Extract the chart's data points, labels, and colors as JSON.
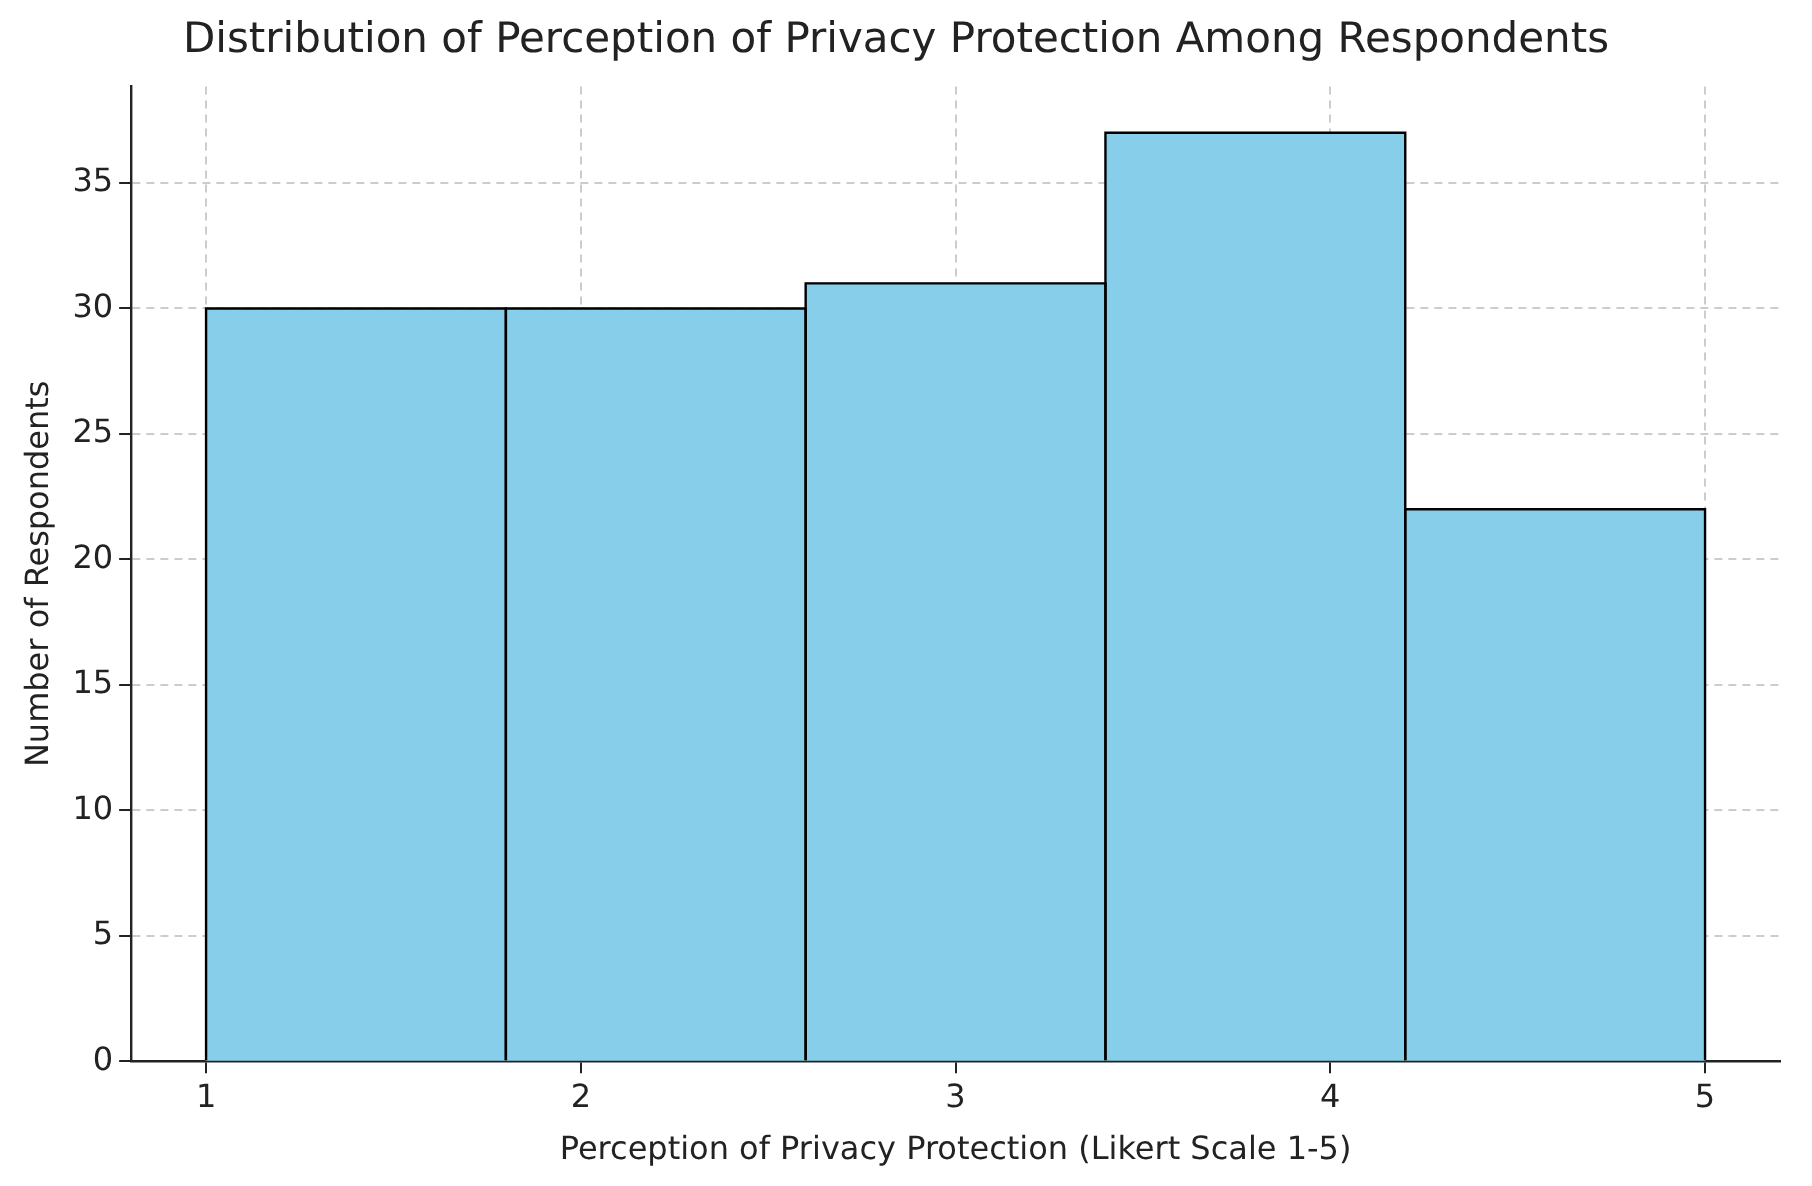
{
  "chart_data": {
    "type": "histogram",
    "title": "Distribution of Perception of Privacy Protection Among Respondents",
    "xlabel": "Perception of Privacy Protection (Likert Scale 1-5)",
    "ylabel": "Number of Respondents",
    "bins": [
      1,
      1.8,
      2.6,
      3.4,
      4.2,
      5
    ],
    "values": [
      30,
      30,
      31,
      37,
      22
    ],
    "color": "#87ceeb",
    "xlim": [
      0.8,
      5.2
    ],
    "xticks": [
      1,
      2,
      3,
      4,
      5
    ],
    "ylim": [
      0,
      38.85
    ],
    "yticks": [
      0,
      5,
      10,
      15,
      20,
      25,
      30,
      35
    ],
    "grid": true
  }
}
